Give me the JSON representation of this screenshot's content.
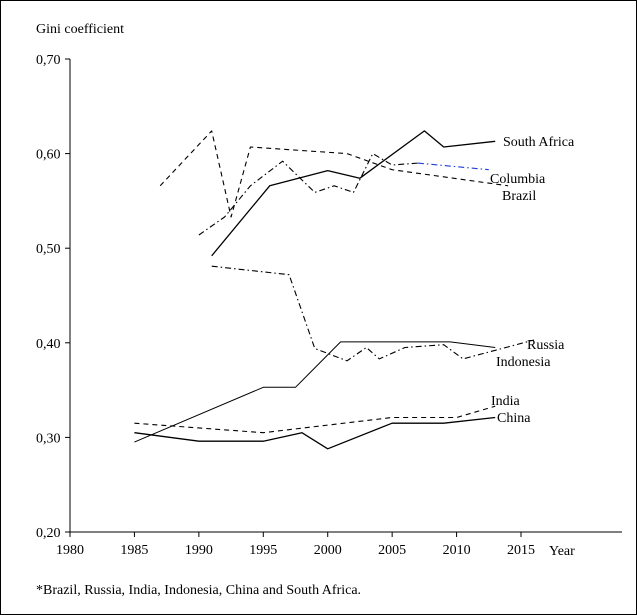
{
  "chart_data": {
    "type": "line",
    "ylabel": "Gini coefficient",
    "xlabel": "Year",
    "xlim": [
      1980,
      2020
    ],
    "ylim": [
      0.2,
      0.7
    ],
    "x_ticks": [
      1980,
      1985,
      1990,
      1995,
      2000,
      2005,
      2010,
      2015
    ],
    "x_tick_labels": [
      "1980",
      "1985",
      "1990",
      "1995",
      "2000",
      "2005",
      "2010",
      "2015"
    ],
    "y_ticks": [
      0.2,
      0.3,
      0.4,
      0.5,
      0.6,
      0.7
    ],
    "y_tick_labels": [
      "0,20",
      "0,30",
      "0,40",
      "0,50",
      "0,60",
      "0,70"
    ],
    "grid": false,
    "legend": "labels at line ends",
    "series": [
      {
        "name": "South Africa",
        "style": "solid",
        "color": "#000000",
        "points": [
          [
            1991,
            0.492
          ],
          [
            1995.5,
            0.566
          ],
          [
            2000,
            0.582
          ],
          [
            2002.5,
            0.574
          ],
          [
            2007.5,
            0.624
          ],
          [
            2009,
            0.607
          ],
          [
            2013,
            0.613
          ]
        ]
      },
      {
        "name": "Columbia",
        "style": "dashdot",
        "color": "#000000",
        "tail_color": "#1f3fd6",
        "points": [
          [
            1990,
            0.514
          ],
          [
            1992,
            0.533
          ],
          [
            1994,
            0.566
          ],
          [
            1996.5,
            0.592
          ],
          [
            1999,
            0.559
          ],
          [
            2000.5,
            0.566
          ],
          [
            2002,
            0.559
          ],
          [
            2003.5,
            0.6
          ],
          [
            2005,
            0.588
          ],
          [
            2007,
            0.59
          ],
          [
            2012.5,
            0.583
          ]
        ]
      },
      {
        "name": "Brazil",
        "style": "dashed",
        "color": "#000000",
        "points": [
          [
            1987,
            0.566
          ],
          [
            1991,
            0.624
          ],
          [
            1992.5,
            0.533
          ],
          [
            1994,
            0.607
          ],
          [
            2001.5,
            0.6
          ],
          [
            2005,
            0.583
          ],
          [
            2014,
            0.566
          ]
        ]
      },
      {
        "name": "Russia",
        "style": "dashdot",
        "color": "#000000",
        "points": [
          [
            1991,
            0.481
          ],
          [
            1997,
            0.472
          ],
          [
            1999,
            0.394
          ],
          [
            2001.5,
            0.381
          ],
          [
            2003,
            0.395
          ],
          [
            2004,
            0.383
          ],
          [
            2006,
            0.395
          ],
          [
            2009,
            0.398
          ],
          [
            2010.5,
            0.383
          ],
          [
            2016,
            0.403
          ]
        ]
      },
      {
        "name": "Indonesia",
        "style": "thin",
        "color": "#000000",
        "points": [
          [
            1985,
            0.295
          ],
          [
            1995,
            0.353
          ],
          [
            1997.5,
            0.353
          ],
          [
            2001,
            0.401
          ],
          [
            2009.5,
            0.401
          ],
          [
            2013,
            0.395
          ]
        ]
      },
      {
        "name": "India",
        "style": "dashed",
        "color": "#000000",
        "points": [
          [
            1985,
            0.315
          ],
          [
            1995,
            0.305
          ],
          [
            2005,
            0.321
          ],
          [
            2010,
            0.321
          ],
          [
            2013,
            0.333
          ]
        ]
      },
      {
        "name": "China",
        "style": "solid",
        "color": "#000000",
        "points": [
          [
            1985,
            0.305
          ],
          [
            1990,
            0.296
          ],
          [
            1995,
            0.296
          ],
          [
            1998,
            0.305
          ],
          [
            2000,
            0.288
          ],
          [
            2005,
            0.315
          ],
          [
            2009,
            0.315
          ],
          [
            2013,
            0.321
          ]
        ]
      }
    ]
  },
  "footnote": "*Brazil, Russia, India, Indonesia, China and South Africa."
}
